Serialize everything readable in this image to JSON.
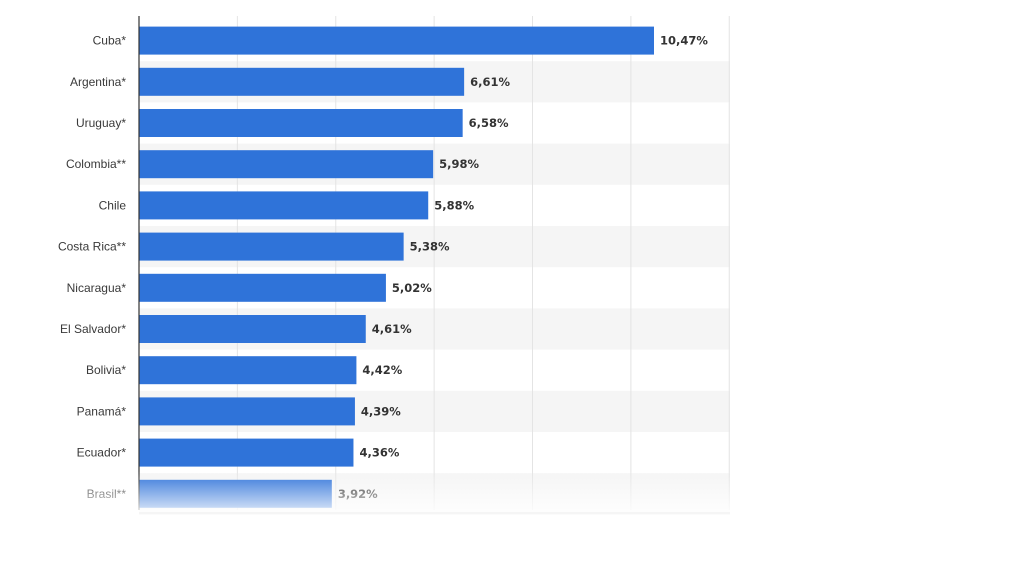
{
  "chart_data": {
    "type": "bar",
    "orientation": "horizontal",
    "categories": [
      "Cuba*",
      "Argentina*",
      "Uruguay*",
      "Colombia**",
      "Chile",
      "Costa Rica**",
      "Nicaragua*",
      "El Salvador*",
      "Bolivia*",
      "Panamá*",
      "Ecuador*",
      "Brasil**"
    ],
    "values": [
      10.47,
      6.61,
      6.58,
      5.98,
      5.88,
      5.38,
      5.02,
      4.61,
      4.42,
      4.39,
      4.36,
      3.92
    ],
    "value_labels": [
      "10,47%",
      "6,61%",
      "6,58%",
      "5,98%",
      "5,88%",
      "5,38%",
      "5,02%",
      "4,61%",
      "4,42%",
      "4,39%",
      "4,36%",
      "3,92%"
    ],
    "title": "",
    "xlabel": "",
    "ylabel": "",
    "xlim": [
      0,
      12
    ],
    "x_gridlines": [
      0,
      2,
      4,
      6,
      8,
      10,
      12
    ],
    "grid": true,
    "legend": "none",
    "bar_color": "#2f73d9",
    "alternate_row_shading": "#f5f5f5",
    "bottom_fade": true
  }
}
